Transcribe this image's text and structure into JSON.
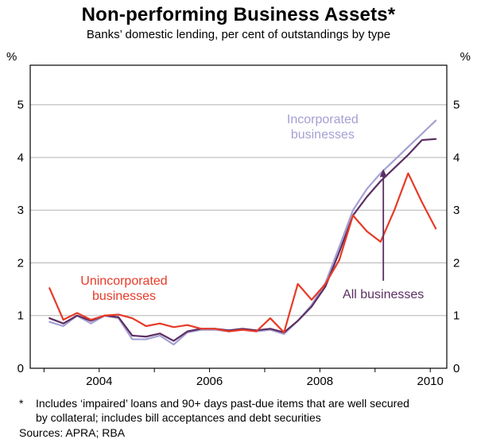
{
  "title": "Non-performing Business Assets*",
  "subtitle": "Banks’ domestic lending, per cent of outstandings by type",
  "footnote": {
    "marker": "*",
    "line1": "Includes ‘impaired’ loans and 90+ days past-due items that are well secured",
    "line2": "by collateral; includes bill acceptances and debt securities",
    "sources": "Sources: APRA; RBA"
  },
  "chart_data": {
    "type": "line",
    "title": "Non-performing Business Assets",
    "subtitle": "Banks’ domestic lending, per cent of outstandings by type",
    "unit": "%",
    "xlim": [
      2002.75,
      2010.3
    ],
    "ylim": [
      0,
      5.75
    ],
    "yticks": [
      0,
      1,
      2,
      3,
      4,
      5
    ],
    "grid": true,
    "grid_color": "#b3b3b3",
    "x_start": 2003.1,
    "x_step": 0.25,
    "xticks": [
      {
        "pos": 2004,
        "label": "2004"
      },
      {
        "pos": 2006,
        "label": "2006"
      },
      {
        "pos": 2008,
        "label": "2008"
      },
      {
        "pos": 2010,
        "label": "2010"
      }
    ],
    "year_ticks": [
      2003,
      2004,
      2005,
      2006,
      2007,
      2008,
      2009,
      2010
    ],
    "series": [
      {
        "id": "incorporated",
        "name": "Incorporated businesses",
        "color": "#a4a0d3",
        "values": [
          0.88,
          0.8,
          1.0,
          0.85,
          1.0,
          0.95,
          0.55,
          0.55,
          0.62,
          0.45,
          0.68,
          0.73,
          0.73,
          0.7,
          0.73,
          0.7,
          0.73,
          0.65,
          0.9,
          1.2,
          1.62,
          2.3,
          3.0,
          3.4,
          3.7,
          3.95,
          4.2,
          4.45,
          4.7
        ]
      },
      {
        "id": "all",
        "name": "All businesses",
        "color": "#5c2e63",
        "values": [
          0.95,
          0.85,
          1.0,
          0.9,
          1.0,
          0.97,
          0.62,
          0.6,
          0.66,
          0.52,
          0.7,
          0.75,
          0.75,
          0.72,
          0.75,
          0.72,
          0.75,
          0.68,
          0.9,
          1.17,
          1.55,
          2.2,
          2.9,
          3.25,
          3.55,
          3.8,
          4.05,
          4.33,
          4.35
        ]
      },
      {
        "id": "unincorporated",
        "name": "Unincorporated businesses",
        "color": "#e83a28",
        "values": [
          1.52,
          0.92,
          1.05,
          0.92,
          1.0,
          1.02,
          0.95,
          0.8,
          0.85,
          0.78,
          0.82,
          0.75,
          0.75,
          0.7,
          0.73,
          0.7,
          0.95,
          0.68,
          1.6,
          1.3,
          1.6,
          2.05,
          2.9,
          2.6,
          2.4,
          3.0,
          3.7,
          3.15,
          2.65
        ]
      }
    ],
    "annotations": [
      {
        "lines": [
          "Incorporated",
          "businesses"
        ],
        "x": 2008.05,
        "y": 4.58,
        "color": "#a4a0d3"
      },
      {
        "lines": [
          "Unincorporated",
          "businesses"
        ],
        "x": 2004.45,
        "y": 1.52,
        "color": "#e83a28"
      },
      {
        "lines": [
          "All businesses"
        ],
        "x": 2009.15,
        "y": 1.4,
        "color": "#5c2e63"
      }
    ],
    "arrow": {
      "x": 2009.15,
      "y_from": 1.66,
      "y_to": 3.78,
      "color": "#5c2e63"
    }
  }
}
